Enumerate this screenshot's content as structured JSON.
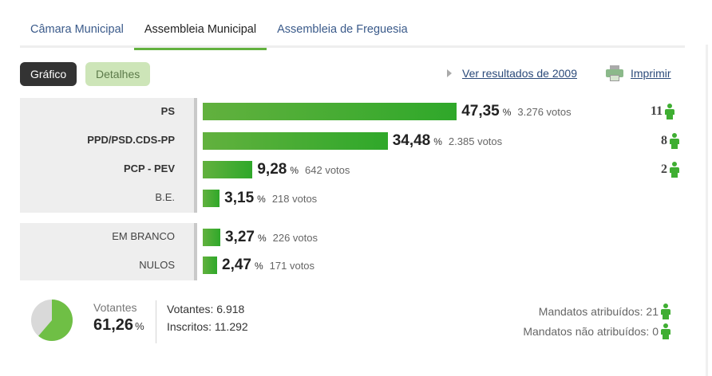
{
  "tabs": [
    {
      "label": "Câmara Municipal",
      "active": false
    },
    {
      "label": "Assembleia Municipal",
      "active": true
    },
    {
      "label": "Assembleia de Freguesia",
      "active": false
    }
  ],
  "toolbar": {
    "grafico_label": "Gráfico",
    "detalhes_label": "Detalhes",
    "previous_results_label": "Ver resultados de 2009",
    "print_label": "Imprimir"
  },
  "results": [
    {
      "party": "PS",
      "percent": "47,35",
      "percent_value": 47.35,
      "unit": "%",
      "votes": "3.276 votos",
      "seats": "11"
    },
    {
      "party": "PPD/PSD.CDS-PP",
      "percent": "34,48",
      "percent_value": 34.48,
      "unit": "%",
      "votes": "2.385 votos",
      "seats": "8"
    },
    {
      "party": "PCP - PEV",
      "percent": "9,28",
      "percent_value": 9.28,
      "unit": "%",
      "votes": "642 votos",
      "seats": "2"
    },
    {
      "party": "B.E.",
      "percent": "3,15",
      "percent_value": 3.15,
      "unit": "%",
      "votes": "218 votos",
      "seats": ""
    }
  ],
  "other_votes": [
    {
      "label": "EM BRANCO",
      "percent": "3,27",
      "percent_value": 3.27,
      "unit": "%",
      "votes": "226 votos"
    },
    {
      "label": "NULOS",
      "percent": "2,47",
      "percent_value": 2.47,
      "unit": "%",
      "votes": "171 votos"
    }
  ],
  "summary": {
    "turnout_label": "Votantes",
    "turnout_percent": "61,26",
    "turnout_value": 61.26,
    "turnout_unit": "%",
    "voters": "Votantes: 6.918",
    "registered": "Inscritos: 11.292",
    "mandates_assigned": "Mandatos atribuídos: 21",
    "mandates_unassigned": "Mandatos não atribuídos: 0"
  },
  "colors": {
    "accent": "#62b13e",
    "bar_end": "#2fa82a",
    "pie_fill": "#6fbf45",
    "pie_rest": "#d9d9d9",
    "link": "#2b4a7a"
  },
  "icons": {
    "seat": "person-icon",
    "print": "printer-icon",
    "previous": "triangle-right-icon"
  }
}
